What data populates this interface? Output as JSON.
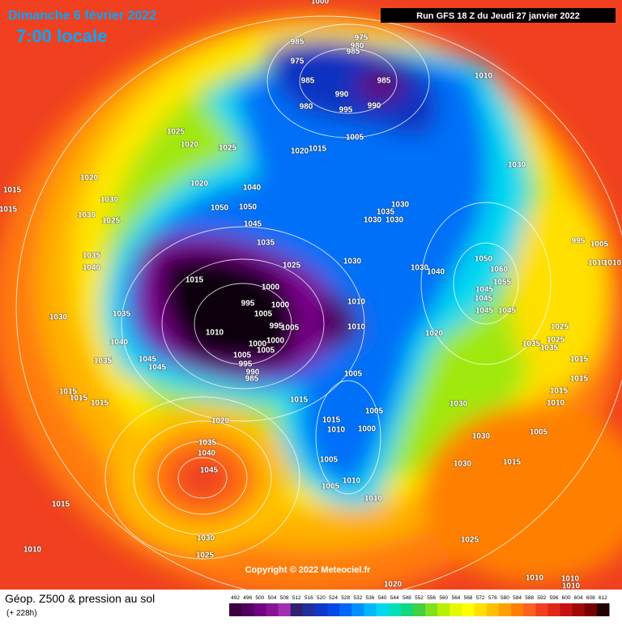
{
  "header": {
    "date": "Dimanche 6 février 2022",
    "time": "7:00 locale",
    "run": "Run GFS 18 Z du Jeudi 27 janvier 2022"
  },
  "footer": {
    "title": "Géop. Z500 & pression au sol",
    "subtitle": "(+ 228h)",
    "copyright": "Copyright © 2022 Meteociel.fr"
  },
  "legend": {
    "values": [
      492,
      496,
      500,
      504,
      508,
      512,
      516,
      520,
      524,
      528,
      532,
      536,
      540,
      544,
      548,
      552,
      556,
      560,
      564,
      568,
      572,
      576,
      580,
      584,
      588,
      592,
      596,
      600,
      604,
      608,
      612
    ],
    "colors": [
      "#3a0040",
      "#500060",
      "#700080",
      "#8a1098",
      "#a030b0",
      "#302070",
      "#20309a",
      "#1038c8",
      "#0048e8",
      "#0068f8",
      "#0090ff",
      "#00b8ff",
      "#00d8f0",
      "#00e0b8",
      "#10d880",
      "#40d040",
      "#80e020",
      "#b8f000",
      "#e8f800",
      "#ffff00",
      "#ffe000",
      "#ffc000",
      "#ffa000",
      "#ff8000",
      "#ff6020",
      "#f04020",
      "#e02818",
      "#c81010",
      "#a00808",
      "#780000",
      "#200000"
    ]
  },
  "pressure_labels": [
    1000,
    985,
    975,
    975,
    980,
    985,
    985,
    985,
    980,
    990,
    995,
    990,
    1010,
    1025,
    1020,
    1025,
    1020,
    1015,
    1005,
    1030,
    1020,
    1015,
    1015,
    1030,
    1030,
    1025,
    1020,
    1040,
    1050,
    1050,
    1045,
    1030,
    1035,
    1030,
    1030,
    1035,
    1040,
    1035,
    1025,
    1030,
    1030,
    1040,
    995,
    1005,
    1010,
    1010,
    1050,
    1060,
    1055,
    1015,
    1000,
    995,
    1000,
    1005,
    1010,
    1045,
    1045,
    1045,
    1045,
    1035,
    1030,
    1010,
    995,
    1005,
    1010,
    1000,
    1000,
    1005,
    1040,
    1020,
    1025,
    1025,
    1035,
    1035,
    1045,
    1045,
    1035,
    1005,
    995,
    990,
    985,
    1005,
    1015,
    1015,
    1015,
    1010,
    1015,
    1015,
    1015,
    1015,
    1030,
    1005,
    1015,
    1010,
    1000,
    1020,
    1030,
    1005,
    1035,
    1040,
    1045,
    1005,
    1030,
    1015,
    1005,
    1010,
    1010,
    1015,
    1030,
    1025,
    1010,
    1025,
    1020,
    1010,
    1010,
    1010
  ]
}
